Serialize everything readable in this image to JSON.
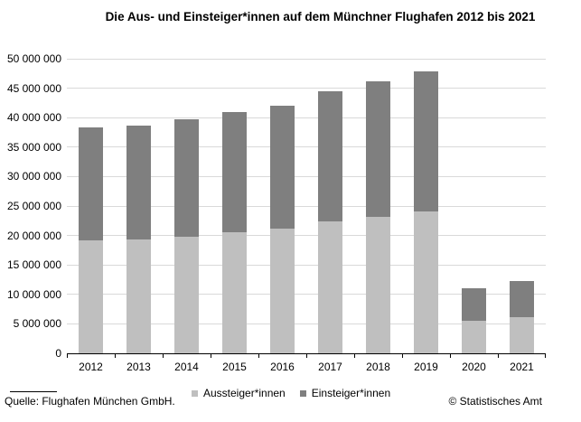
{
  "title": "Die Aus- und Einsteiger*innen auf dem Münchner Flughafen 2012 bis 2021",
  "footer": {
    "source": "Quelle: Flughafen München GmbH.",
    "copyright": "© Statistisches Amt"
  },
  "colors": {
    "aussteiger": "#bfbfbf",
    "einsteiger": "#7f7f7f",
    "gridline": "#d9d9d9",
    "axis": "#000000",
    "text": "#000000",
    "background": "#ffffff"
  },
  "chart_data": {
    "type": "bar",
    "stacked": true,
    "title": "Die Aus- und Einsteiger*innen auf dem Münchner Flughafen 2012 bis 2021",
    "xlabel": "",
    "ylabel": "",
    "categories": [
      "2012",
      "2013",
      "2014",
      "2015",
      "2016",
      "2017",
      "2018",
      "2019",
      "2020",
      "2021"
    ],
    "series": [
      {
        "name": "Aussteiger*innen",
        "color": "#bfbfbf",
        "values": [
          19100000,
          19300000,
          19800000,
          20500000,
          21100000,
          22400000,
          23100000,
          24100000,
          5600000,
          6200000
        ]
      },
      {
        "name": "Einsteiger*innen",
        "color": "#7f7f7f",
        "values": [
          19200000,
          19300000,
          19900000,
          20400000,
          21000000,
          22100000,
          23100000,
          23800000,
          5400000,
          6100000
        ]
      }
    ],
    "totals": [
      38300000,
      38600000,
      39700000,
      40900000,
      42100000,
      44500000,
      46200000,
      47900000,
      11000000,
      12300000
    ],
    "ylim": [
      0,
      50000000
    ],
    "ytick_step": 5000000,
    "ytick_labels": [
      "0",
      "5 000 000",
      "10 000 000",
      "15 000 000",
      "20 000 000",
      "25 000 000",
      "30 000 000",
      "35 000 000",
      "40 000 000",
      "45 000 000",
      "50 000 000"
    ],
    "grid": true,
    "legend_position": "bottom"
  }
}
